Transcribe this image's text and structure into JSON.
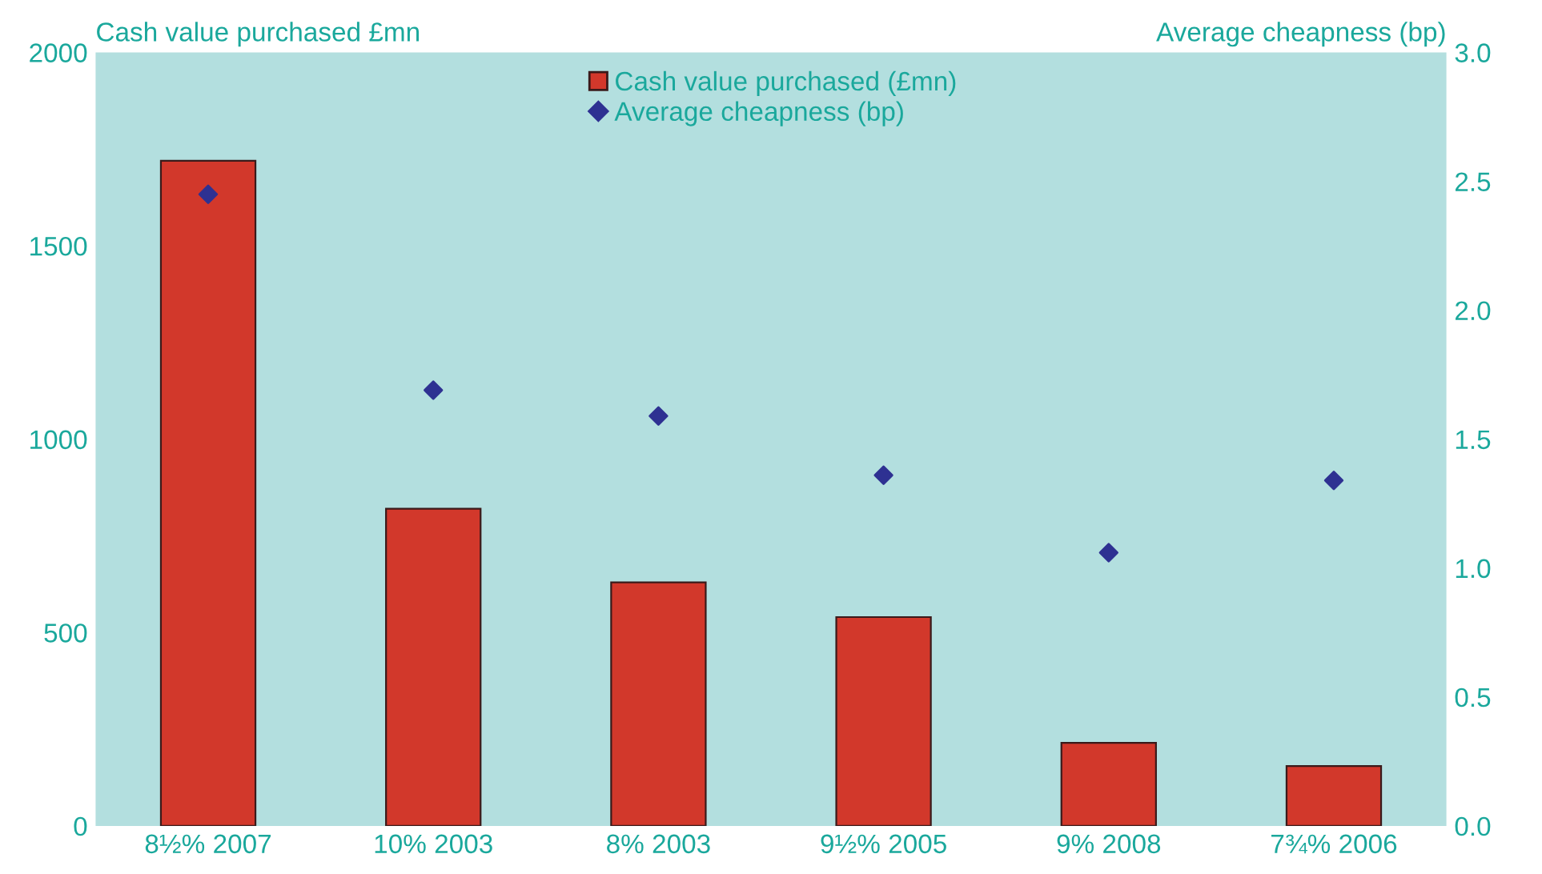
{
  "chart_data": {
    "type": "bar",
    "ylabel": "Cash value purchased £mn",
    "y2label": "Average cheapness (bp)",
    "categories": [
      "8½% 2007",
      "10% 2003",
      "8% 2003",
      "9½% 2005",
      "9% 2008",
      "7¾% 2006"
    ],
    "series": [
      {
        "name": "Cash value purchased (£mn)",
        "color": "#d2382b",
        "values": [
          1720,
          820,
          630,
          540,
          215,
          155
        ]
      },
      {
        "name": "Average cheapness (bp)",
        "type": "scatter",
        "axis": "y2",
        "marker": "diamond",
        "color": "#2e3192",
        "values": [
          2.45,
          1.69,
          1.59,
          1.36,
          1.06,
          1.34
        ]
      }
    ],
    "ylim": [
      0,
      2000
    ],
    "yticks": [
      0,
      500,
      1000,
      1500,
      2000
    ],
    "y2lim": [
      0,
      3.0
    ],
    "y2ticks": [
      {
        "value": 0,
        "label": "0.0"
      },
      {
        "value": 0.5,
        "label": "0.5"
      },
      {
        "value": 1.0,
        "label": "1.0"
      },
      {
        "value": 1.5,
        "label": "1.5"
      },
      {
        "value": 2.0,
        "label": "2.0"
      },
      {
        "value": 2.5,
        "label": "2.5"
      },
      {
        "value": 3.0,
        "label": "3.0"
      }
    ],
    "grid": false,
    "legend": "top"
  }
}
